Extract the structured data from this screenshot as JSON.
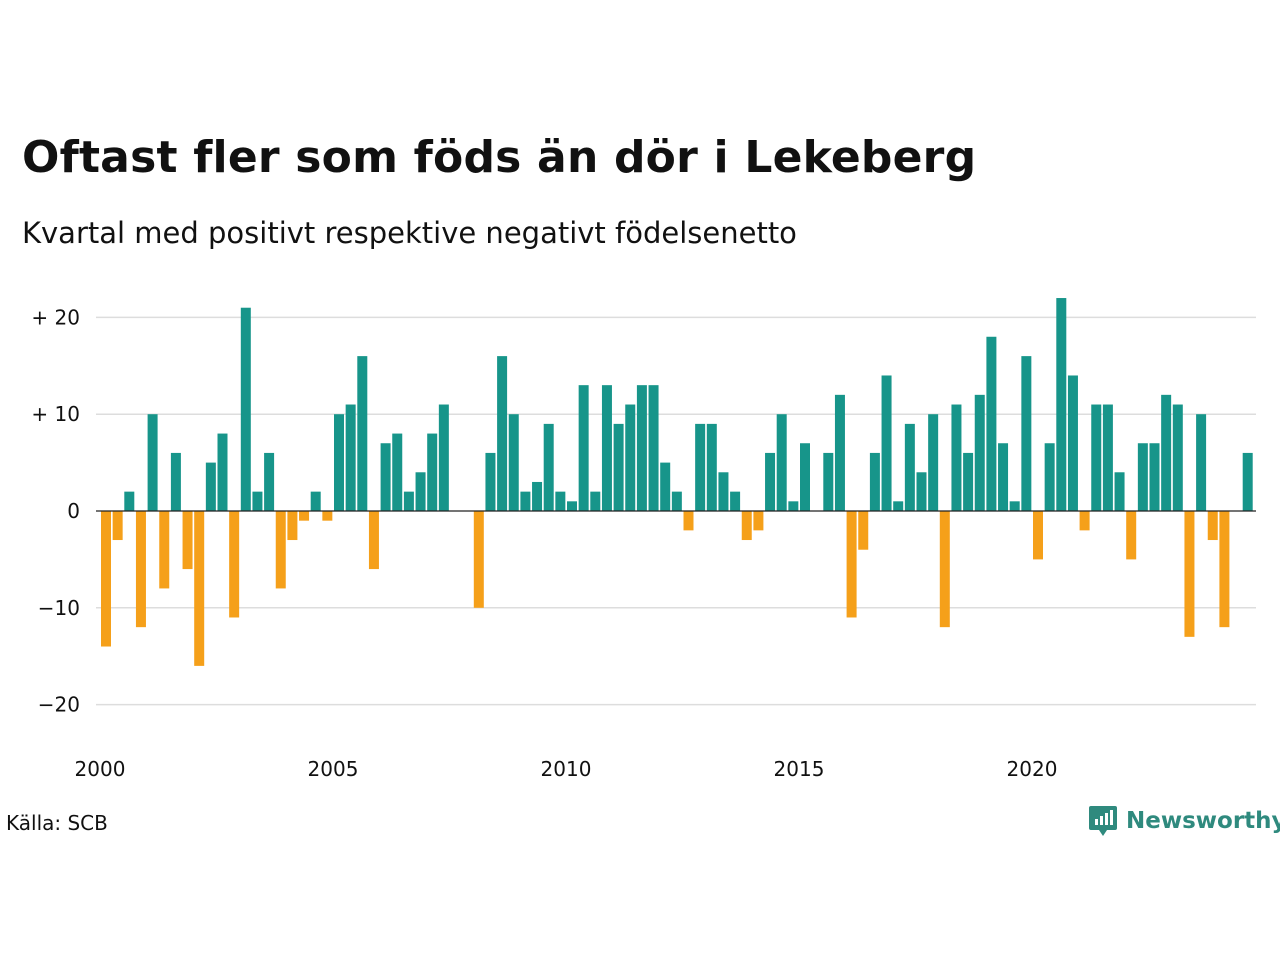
{
  "header": {
    "title": "Oftast fler som föds än dör i Lekeberg",
    "subtitle": "Kvartal med positivt respektive negativt födelsenetto"
  },
  "footer": {
    "source": "Källa: SCB",
    "brand": "Newsworthy"
  },
  "colors": {
    "positive": "#17958a",
    "negative": "#f5a01a",
    "grid": "#dddddd",
    "baseline": "#222222",
    "brand": "#2f8a7e"
  },
  "chart_data": {
    "type": "bar",
    "x_start": "2000 Q1",
    "quarters_per_year": 4,
    "values": [
      -14,
      -3,
      2,
      -12,
      10,
      -8,
      6,
      -6,
      -16,
      5,
      8,
      -11,
      21,
      2,
      6,
      -8,
      -3,
      -1,
      2,
      -1,
      10,
      11,
      16,
      -6,
      7,
      8,
      2,
      4,
      8,
      11,
      0,
      0,
      -10,
      6,
      16,
      10,
      2,
      3,
      9,
      2,
      1,
      13,
      2,
      13,
      9,
      11,
      13,
      13,
      5,
      2,
      -2,
      9,
      9,
      4,
      2,
      -3,
      -2,
      6,
      10,
      1,
      7,
      0,
      6,
      12,
      -11,
      -4,
      6,
      14,
      1,
      9,
      4,
      10,
      -12,
      11,
      6,
      12,
      18,
      7,
      1,
      16,
      -5,
      7,
      22,
      14,
      -2,
      11,
      11,
      4,
      -5,
      7,
      7,
      12,
      11,
      -13,
      10,
      -3,
      -12,
      0,
      6
    ],
    "ylim": [
      -24,
      24
    ],
    "yticks": [
      {
        "value": 20,
        "label": "+ 20"
      },
      {
        "value": 10,
        "label": "+ 10"
      },
      {
        "value": 0,
        "label": "0"
      },
      {
        "value": -10,
        "label": "−10"
      },
      {
        "value": -20,
        "label": "−20"
      }
    ],
    "xticks": [
      {
        "year": 2000,
        "label": "2000"
      },
      {
        "year": 2005,
        "label": "2005"
      },
      {
        "year": 2010,
        "label": "2010"
      },
      {
        "year": 2015,
        "label": "2015"
      },
      {
        "year": 2020,
        "label": "2020"
      }
    ],
    "grid": true,
    "legend": "none"
  }
}
